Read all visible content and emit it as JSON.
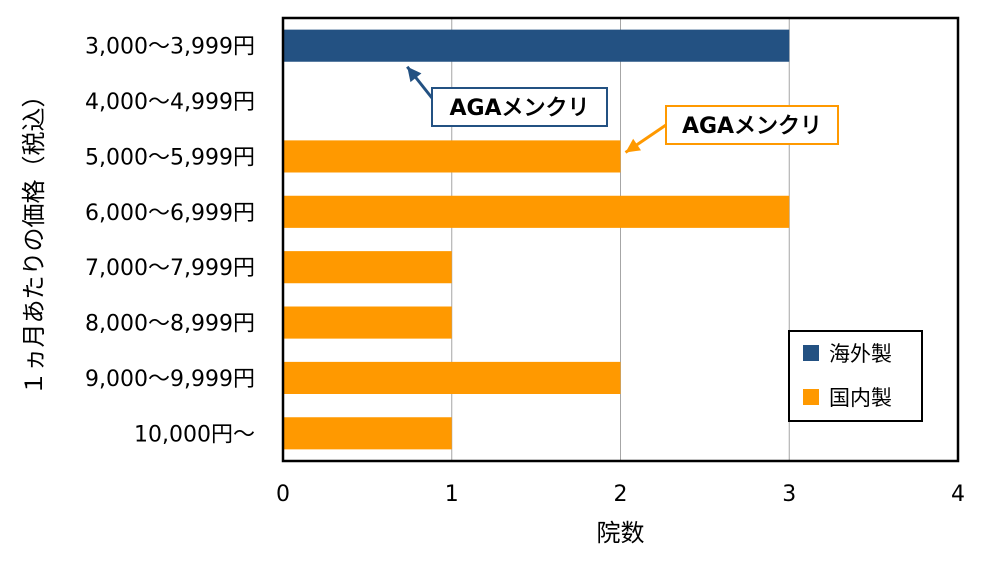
{
  "chart_data": {
    "type": "bar",
    "orientation": "horizontal",
    "categories": [
      "3,000～3,999円",
      "4,000～4,999円",
      "5,000～5,999円",
      "6,000～6,999円",
      "7,000～7,999円",
      "8,000～8,999円",
      "9,000～9,999円",
      "10,000円～"
    ],
    "series": [
      {
        "name": "海外製",
        "color": "#235182",
        "values": [
          3,
          0,
          0,
          0,
          0,
          0,
          0,
          0
        ]
      },
      {
        "name": "国内製",
        "color": "#FF9900",
        "values": [
          0,
          0,
          2,
          3,
          1,
          1,
          2,
          1
        ]
      }
    ],
    "xlim": [
      0,
      4
    ],
    "xticks": [
      "0",
      "1",
      "2",
      "3",
      "4"
    ],
    "xlabel": "院数",
    "ylabel": "１ヵ月あたりの価格（税込）",
    "grid": "vertical",
    "legend_position": "bottom-right",
    "annotations": [
      {
        "text": "AGAメンクリ",
        "series": "海外製",
        "category": "3,000～3,999円",
        "color": "#235182"
      },
      {
        "text": "AGAメンクリ",
        "series": "国内製",
        "category": "5,000～5,999円",
        "color": "#FF9900"
      }
    ]
  }
}
